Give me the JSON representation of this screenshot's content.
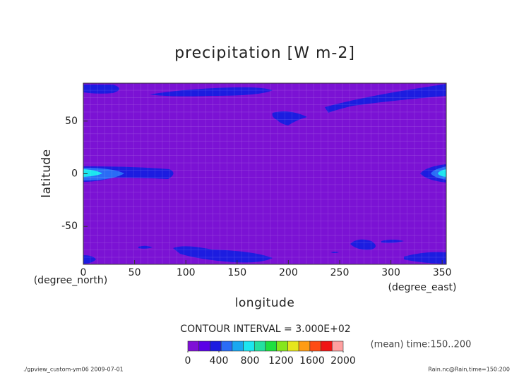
{
  "chart_data": {
    "type": "contour",
    "title": "precipitation [W m-2]",
    "x_label": "longitude",
    "y_label": "latitude",
    "x_unit": "(degree_east)",
    "y_unit": "(degree_north)",
    "xlim": [
      0,
      354
    ],
    "xticks": [
      0,
      50,
      100,
      150,
      200,
      250,
      300,
      350
    ],
    "ylim": [
      -86,
      86
    ],
    "yticks": [
      -50,
      0,
      50
    ],
    "grid": true,
    "contour_interval": "CONTOUR INTERVAL = 3.000E+02",
    "note": "(mean) time:150..200",
    "footer_left": "./gpview_custom-ym06  2009-07-01",
    "footer_right": "Rain.nc@Rain,time=150:200",
    "colorbar": {
      "clim": [
        0,
        2000
      ],
      "ticks": [
        0,
        400,
        800,
        1200,
        1600,
        2000
      ],
      "colors": [
        "#7f10d6",
        "#5a00e6",
        "#1c1ce0",
        "#2a6cf6",
        "#19a8f0",
        "#1ce6f0",
        "#24e0a0",
        "#1ee040",
        "#86e61c",
        "#e6e61c",
        "#ff9c14",
        "#ff4c14",
        "#f01414",
        "#ffa0a0"
      ]
    }
  }
}
